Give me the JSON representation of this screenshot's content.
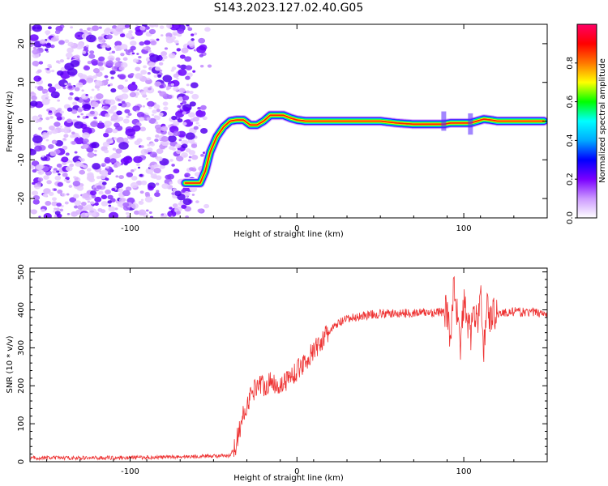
{
  "title": "S143.2023.127.02.40.G05",
  "chart_data": [
    {
      "type": "heatmap",
      "name": "spectrogram",
      "xlabel": "Height of straight line (km)",
      "ylabel": "Frequency (Hz)",
      "xlim": [
        -160,
        150
      ],
      "ylim": [
        -25,
        25
      ],
      "xticks": [
        -100,
        0,
        100
      ],
      "yticks": [
        -20,
        -10,
        0,
        10,
        20
      ],
      "colorbar": {
        "label": "Normalized spectral amplitude",
        "range": [
          0,
          1
        ],
        "ticks": [
          0.0,
          0.2,
          0.4,
          0.6,
          0.8
        ],
        "colormap": [
          "#ffffff",
          "#cc99ff",
          "#7a00ff",
          "#0000ff",
          "#00aaff",
          "#00ffff",
          "#00ff00",
          "#ffff00",
          "#ff7700",
          "#ff0000",
          "#ff0066"
        ]
      },
      "ridge": {
        "x": [
          -67,
          -62,
          -58,
          -55,
          -52,
          -48,
          -44,
          -40,
          -36,
          -32,
          -28,
          -24,
          -20,
          -16,
          -12,
          -8,
          -4,
          0,
          5,
          10,
          15,
          20,
          30,
          40,
          50,
          60,
          70,
          80,
          88,
          92,
          96,
          100,
          104,
          108,
          112,
          116,
          120,
          130,
          140,
          148
        ],
        "y": [
          -16,
          -16,
          -16,
          -13,
          -8,
          -4,
          -1.5,
          0,
          0.3,
          0.3,
          -1,
          -1,
          0,
          1.5,
          1.5,
          1.5,
          0.8,
          0.3,
          0,
          0,
          0,
          0,
          0,
          0,
          0,
          -0.5,
          -0.8,
          -0.8,
          -0.8,
          -0.5,
          -0.5,
          -0.5,
          -0.5,
          0,
          0.5,
          0.3,
          0,
          0,
          0,
          0
        ]
      },
      "noise_region_x": [
        -160,
        -50
      ]
    },
    {
      "type": "line",
      "name": "snr",
      "xlabel": "Height of straight line (km)",
      "ylabel": "SNR (10 * v/v)",
      "xlim": [
        -160,
        150
      ],
      "ylim": [
        0,
        510
      ],
      "xticks": [
        -100,
        0,
        100
      ],
      "yticks": [
        0,
        100,
        200,
        300,
        400,
        500
      ],
      "color": "#ee3333",
      "series": [
        {
          "x": [
            -160,
            -120,
            -80,
            -50,
            -40,
            -37,
            -33,
            -30,
            -27,
            -23,
            -20,
            -15,
            -10,
            -5,
            0,
            5,
            10,
            15,
            20,
            25,
            30,
            40,
            50,
            60,
            70,
            80,
            90,
            92,
            94,
            96,
            98,
            100,
            102,
            104,
            106,
            108,
            110,
            112,
            114,
            116,
            118,
            120,
            130,
            140,
            150
          ],
          "y": [
            10,
            10,
            12,
            15,
            15,
            40,
            110,
            150,
            180,
            210,
            200,
            210,
            200,
            220,
            240,
            265,
            290,
            320,
            345,
            365,
            375,
            385,
            390,
            390,
            392,
            393,
            395,
            320,
            480,
            390,
            300,
            420,
            380,
            330,
            400,
            360,
            440,
            300,
            420,
            370,
            395,
            390,
            395,
            393,
            392
          ]
        }
      ]
    }
  ]
}
